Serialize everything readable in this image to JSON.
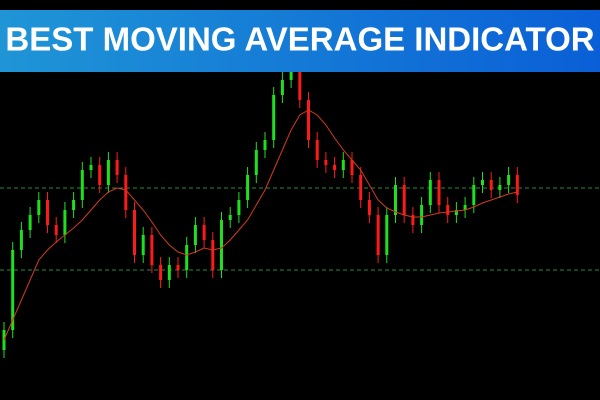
{
  "chart_data": {
    "type": "candlestick",
    "title": "BEST MOVING AVERAGE INDICATOR",
    "ylim": [
      0,
      400
    ],
    "open": [
      50,
      70,
      150,
      170,
      185,
      200,
      175,
      165,
      190,
      200,
      230,
      235,
      215,
      240,
      225,
      190,
      145,
      165,
      135,
      120,
      135,
      130,
      155,
      175,
      160,
      130,
      180,
      185,
      200,
      225,
      250,
      260,
      305,
      320,
      335,
      300,
      260,
      240,
      235,
      230,
      240,
      225,
      200,
      185,
      145,
      185,
      215,
      185,
      175,
      195,
      220,
      195,
      185,
      190,
      195,
      215,
      220,
      210,
      215,
      225
    ],
    "high": [
      78,
      158,
      178,
      193,
      208,
      208,
      183,
      198,
      208,
      238,
      243,
      243,
      248,
      248,
      233,
      198,
      173,
      173,
      143,
      143,
      143,
      163,
      183,
      183,
      168,
      188,
      193,
      208,
      233,
      258,
      268,
      313,
      328,
      343,
      343,
      308,
      268,
      248,
      243,
      248,
      248,
      233,
      208,
      193,
      193,
      223,
      223,
      193,
      203,
      228,
      228,
      203,
      198,
      203,
      223,
      228,
      228,
      223,
      233,
      233
    ],
    "low": [
      42,
      62,
      142,
      162,
      177,
      167,
      157,
      157,
      182,
      192,
      222,
      207,
      207,
      217,
      182,
      137,
      137,
      127,
      112,
      112,
      122,
      122,
      147,
      152,
      122,
      122,
      172,
      177,
      192,
      217,
      242,
      252,
      297,
      312,
      292,
      252,
      232,
      227,
      222,
      222,
      217,
      192,
      177,
      137,
      137,
      177,
      177,
      167,
      167,
      187,
      187,
      177,
      177,
      182,
      187,
      207,
      202,
      202,
      207,
      197
    ],
    "close": [
      70,
      150,
      170,
      185,
      200,
      175,
      165,
      190,
      200,
      230,
      235,
      215,
      240,
      225,
      190,
      145,
      165,
      135,
      120,
      135,
      130,
      155,
      175,
      160,
      130,
      180,
      185,
      200,
      225,
      250,
      260,
      305,
      320,
      335,
      300,
      260,
      240,
      235,
      230,
      240,
      225,
      200,
      185,
      145,
      185,
      215,
      185,
      175,
      195,
      220,
      195,
      185,
      190,
      195,
      215,
      220,
      210,
      215,
      225,
      205
    ],
    "ma": [
      60,
      80,
      100,
      120,
      140,
      150,
      158,
      165,
      172,
      180,
      190,
      200,
      208,
      212,
      210,
      200,
      190,
      178,
      165,
      155,
      148,
      145,
      148,
      152,
      150,
      152,
      160,
      170,
      180,
      195,
      210,
      230,
      250,
      270,
      285,
      290,
      285,
      275,
      262,
      250,
      240,
      230,
      215,
      200,
      192,
      188,
      185,
      183,
      183,
      185,
      187,
      188,
      189,
      190,
      193,
      197,
      200,
      203,
      206,
      208
    ],
    "levels": [
      212,
      130
    ],
    "up_color": "#1ee01e",
    "down_color": "#ff1a1a",
    "ma_color": "#d23a1e",
    "level_color": "#2a8a3a"
  }
}
